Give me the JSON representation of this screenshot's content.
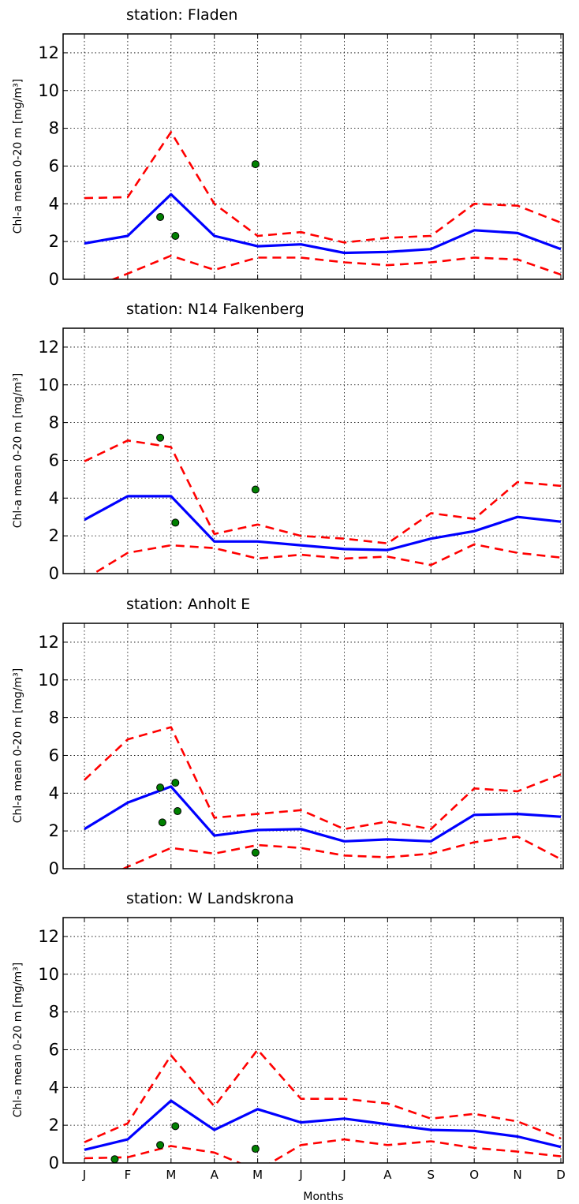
{
  "chart_data": [
    {
      "type": "line",
      "title": "station: Fladen",
      "ylabel": "Chl-a mean 0-20 m [mg/m³]",
      "xlabel": "",
      "x_ticks": [
        "J",
        "F",
        "M",
        "A",
        "M",
        "J",
        "J",
        "A",
        "S",
        "O",
        "N",
        "D"
      ],
      "show_x_ticklabels": false,
      "ylim": [
        0,
        13
      ],
      "yticks": [
        0,
        2,
        4,
        6,
        8,
        10,
        12
      ],
      "grid": true,
      "series": [
        {
          "role": "mean",
          "color": "#0000ff",
          "style": "solid",
          "x": [
            1,
            2,
            3,
            4,
            5,
            6,
            7,
            8,
            9,
            10,
            11,
            12
          ],
          "y": [
            1.9,
            2.3,
            4.5,
            2.3,
            1.75,
            1.85,
            1.4,
            1.45,
            1.6,
            2.6,
            2.45,
            1.6
          ]
        },
        {
          "role": "upper",
          "color": "#ff0000",
          "style": "dashed",
          "x": [
            1,
            2,
            3,
            4,
            5,
            6,
            7,
            8,
            9,
            10,
            11,
            12
          ],
          "y": [
            4.3,
            4.35,
            7.8,
            4.0,
            2.3,
            2.5,
            1.95,
            2.2,
            2.3,
            4.0,
            3.9,
            3.0
          ]
        },
        {
          "role": "lower",
          "color": "#ff0000",
          "style": "dashed",
          "x": [
            1,
            2,
            3,
            4,
            5,
            6,
            7,
            8,
            9,
            10,
            11,
            12
          ],
          "y": [
            -0.6,
            0.3,
            1.25,
            0.5,
            1.15,
            1.15,
            0.9,
            0.75,
            0.9,
            1.15,
            1.05,
            0.25
          ]
        }
      ],
      "points": {
        "color": "#008000",
        "x": [
          2.75,
          3.1,
          4.95
        ],
        "y": [
          3.3,
          2.3,
          6.1
        ]
      }
    },
    {
      "type": "line",
      "title": "station: N14 Falkenberg",
      "ylabel": "Chl-a mean 0-20 m [mg/m³]",
      "xlabel": "",
      "x_ticks": [
        "J",
        "F",
        "M",
        "A",
        "M",
        "J",
        "J",
        "A",
        "S",
        "O",
        "N",
        "D"
      ],
      "show_x_ticklabels": false,
      "ylim": [
        0,
        13
      ],
      "yticks": [
        0,
        2,
        4,
        6,
        8,
        10,
        12
      ],
      "grid": true,
      "series": [
        {
          "role": "mean",
          "color": "#0000ff",
          "style": "solid",
          "x": [
            1,
            2,
            3,
            4,
            5,
            6,
            7,
            8,
            9,
            10,
            11,
            12
          ],
          "y": [
            2.85,
            4.1,
            4.1,
            1.7,
            1.7,
            1.5,
            1.3,
            1.25,
            1.85,
            2.25,
            3.0,
            2.75
          ]
        },
        {
          "role": "upper",
          "color": "#ff0000",
          "style": "dashed",
          "x": [
            1,
            2,
            3,
            4,
            5,
            6,
            7,
            8,
            9,
            10,
            11,
            12
          ],
          "y": [
            5.95,
            7.05,
            6.7,
            2.1,
            2.6,
            2.0,
            1.85,
            1.6,
            3.2,
            2.9,
            4.85,
            4.65
          ]
        },
        {
          "role": "lower",
          "color": "#ff0000",
          "style": "dashed",
          "x": [
            1,
            2,
            3,
            4,
            5,
            6,
            7,
            8,
            9,
            10,
            11,
            12
          ],
          "y": [
            -0.3,
            1.1,
            1.5,
            1.35,
            0.8,
            1.0,
            0.8,
            0.9,
            0.45,
            1.55,
            1.1,
            0.85
          ]
        }
      ],
      "points": {
        "color": "#008000",
        "x": [
          2.75,
          3.1,
          4.95
        ],
        "y": [
          7.2,
          2.7,
          4.45
        ]
      }
    },
    {
      "type": "line",
      "title": "station: Anholt E",
      "ylabel": "Chl-a mean 0-20 m [mg/m³]",
      "xlabel": "",
      "x_ticks": [
        "J",
        "F",
        "M",
        "A",
        "M",
        "J",
        "J",
        "A",
        "S",
        "O",
        "N",
        "D"
      ],
      "show_x_ticklabels": false,
      "ylim": [
        0,
        13
      ],
      "yticks": [
        0,
        2,
        4,
        6,
        8,
        10,
        12
      ],
      "grid": true,
      "series": [
        {
          "role": "mean",
          "color": "#0000ff",
          "style": "solid",
          "x": [
            1,
            2,
            3,
            4,
            5,
            6,
            7,
            8,
            9,
            10,
            11,
            12
          ],
          "y": [
            2.1,
            3.5,
            4.35,
            1.75,
            2.05,
            2.1,
            1.45,
            1.55,
            1.45,
            2.85,
            2.9,
            2.75
          ]
        },
        {
          "role": "upper",
          "color": "#ff0000",
          "style": "dashed",
          "x": [
            1,
            2,
            3,
            4,
            5,
            6,
            7,
            8,
            9,
            10,
            11,
            12
          ],
          "y": [
            4.7,
            6.85,
            7.5,
            2.7,
            2.9,
            3.1,
            2.1,
            2.5,
            2.1,
            4.25,
            4.1,
            5.0
          ]
        },
        {
          "role": "lower",
          "color": "#ff0000",
          "style": "dashed",
          "x": [
            1,
            2,
            3,
            4,
            5,
            6,
            7,
            8,
            9,
            10,
            11,
            12
          ],
          "y": [
            -1.0,
            0.1,
            1.1,
            0.8,
            1.25,
            1.1,
            0.7,
            0.6,
            0.8,
            1.4,
            1.7,
            0.5
          ]
        }
      ],
      "points": {
        "color": "#008000",
        "x": [
          2.75,
          2.8,
          3.1,
          3.15,
          4.95
        ],
        "y": [
          4.3,
          2.45,
          4.55,
          3.05,
          0.85
        ]
      }
    },
    {
      "type": "line",
      "title": "station: W Landskrona",
      "ylabel": "Chl-a mean 0-20 m [mg/m³]",
      "xlabel": "Months",
      "x_ticks": [
        "J",
        "F",
        "M",
        "A",
        "M",
        "J",
        "J",
        "A",
        "S",
        "O",
        "N",
        "D"
      ],
      "show_x_ticklabels": true,
      "ylim": [
        0,
        13
      ],
      "yticks": [
        0,
        2,
        4,
        6,
        8,
        10,
        12
      ],
      "grid": true,
      "series": [
        {
          "role": "mean",
          "color": "#0000ff",
          "style": "solid",
          "x": [
            1,
            2,
            3,
            4,
            5,
            6,
            7,
            8,
            9,
            10,
            11,
            12
          ],
          "y": [
            0.7,
            1.25,
            3.3,
            1.75,
            2.85,
            2.15,
            2.35,
            2.05,
            1.75,
            1.7,
            1.4,
            0.85
          ]
        },
        {
          "role": "upper",
          "color": "#ff0000",
          "style": "dashed",
          "x": [
            1,
            2,
            3,
            4,
            5,
            6,
            7,
            8,
            9,
            10,
            11,
            12
          ],
          "y": [
            1.1,
            2.1,
            5.7,
            3.0,
            6.0,
            3.4,
            3.4,
            3.15,
            2.35,
            2.6,
            2.2,
            1.3
          ]
        },
        {
          "role": "lower",
          "color": "#ff0000",
          "style": "dashed",
          "x": [
            1,
            2,
            3,
            4,
            5,
            6,
            7,
            8,
            9,
            10,
            11,
            12
          ],
          "y": [
            0.25,
            0.3,
            0.9,
            0.55,
            -0.4,
            0.95,
            1.25,
            0.95,
            1.15,
            0.8,
            0.6,
            0.35
          ]
        }
      ],
      "points": {
        "color": "#008000",
        "x": [
          1.7,
          2.75,
          3.1,
          4.95
        ],
        "y": [
          0.2,
          0.95,
          1.95,
          0.75
        ]
      }
    }
  ]
}
